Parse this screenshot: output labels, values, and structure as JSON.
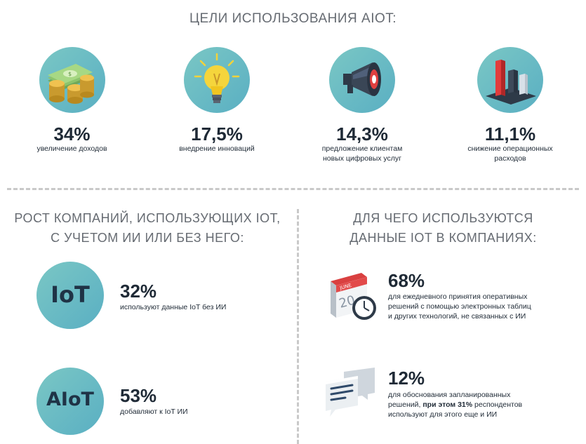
{
  "goals": {
    "title": "ЦЕЛИ ИСПОЛЬЗОВАНИЯ AIOT:",
    "items": [
      {
        "value": "34%",
        "caption_line1": "увеличение доходов",
        "caption_line2": "",
        "icon": "money-coins-icon"
      },
      {
        "value": "17,5%",
        "caption_line1": "внедрение инноваций",
        "caption_line2": "",
        "icon": "lightbulb-icon"
      },
      {
        "value": "14,3%",
        "caption_line1": "предложение клиентам",
        "caption_line2": "новых цифровых услуг",
        "icon": "megaphone-icon"
      },
      {
        "value": "11,1%",
        "caption_line1": "снижение операционных",
        "caption_line2": "расходов",
        "icon": "bar-chart-icon"
      }
    ]
  },
  "growth": {
    "title_line1": "РОСТ КОМПАНИЙ, ИСПОЛЬЗУЮЩИХ IOT,",
    "title_line2": "С УЧЕТОМ ИИ ИЛИ БЕЗ НЕГО:",
    "items": [
      {
        "badge": "IoT",
        "value": "32%",
        "caption": "используют данные IoT без ИИ"
      },
      {
        "badge": "AIoT",
        "value": "53%",
        "caption": "добавляют к IoT ИИ"
      }
    ]
  },
  "usage": {
    "title_line1": "ДЛЯ ЧЕГО ИСПОЛЬЗУЮТСЯ",
    "title_line2": "ДАННЫЕ IOT В КОМПАНИЯХ:",
    "items": [
      {
        "value": "68%",
        "line1": "для ежедневного принятия оперативных",
        "line2": "решений с помощью электронных таблиц",
        "line3": "и других технологий, не связанных с ИИ",
        "icon": "calendar-clock-icon",
        "calendar_month": "JUNE",
        "calendar_day": "20"
      },
      {
        "value": "12%",
        "line1": "для обоснования запланированных",
        "line2_prefix": "решений, ",
        "line2_bold": "при этом 31%",
        "line2_suffix": " респондентов",
        "line3": "используют для этого еще и ИИ",
        "icon": "chat-bubbles-icon"
      }
    ]
  },
  "colors": {
    "circle": "#6bbcc3",
    "text": "#1f2a36",
    "title": "#666b72",
    "divider": "#c9c9c9"
  }
}
